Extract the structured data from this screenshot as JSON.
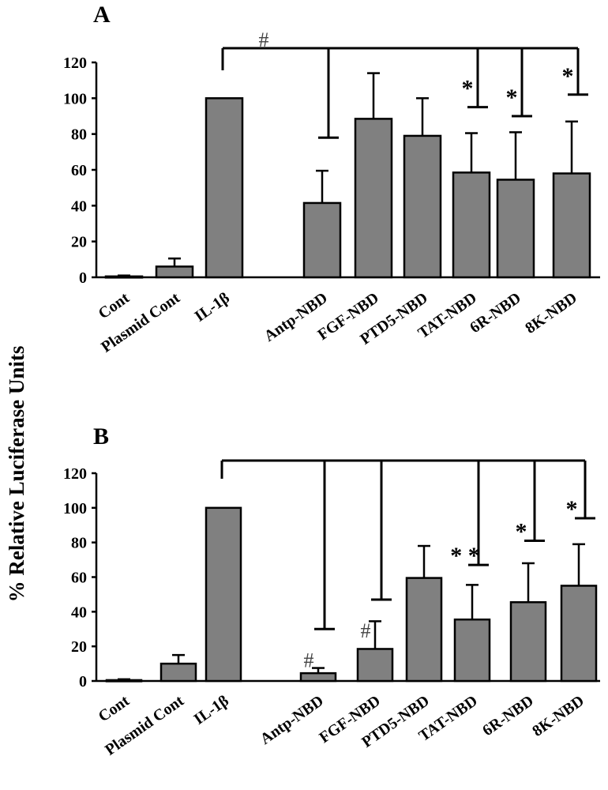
{
  "y_axis_label": "% Relative Luciferase Units",
  "chart_data": [
    {
      "type": "bar",
      "panel_label": "A",
      "ylabel": "% Relative Luciferase Units",
      "ylim": [
        0,
        120
      ],
      "yticks": [
        0,
        20,
        40,
        60,
        80,
        100,
        120
      ],
      "categories": [
        "Cont",
        "Plasmid Cont",
        "IL-1β",
        "Antp-NBD",
        "FGF-NBD",
        "PTD5-NBD",
        "TAT-NBD",
        "6R-NBD",
        "8K-NBD"
      ],
      "values": [
        0.5,
        6,
        100,
        41.5,
        88.5,
        79,
        58.5,
        54.5,
        58
      ],
      "errors": [
        0.5,
        4.5,
        0,
        18,
        25.5,
        21,
        22,
        26.5,
        29
      ],
      "significance": {
        "reference": "IL-1β",
        "global_marker": "#",
        "markers": [
          {
            "category": "Antp-NBD",
            "symbol": "",
            "level": 78
          },
          {
            "category": "TAT-NBD",
            "symbol": "*",
            "level": 95
          },
          {
            "category": "6R-NBD",
            "symbol": "*",
            "level": 90
          },
          {
            "category": "8K-NBD",
            "symbol": "*",
            "level": 102
          }
        ]
      }
    },
    {
      "type": "bar",
      "panel_label": "B",
      "ylabel": "% Relative Luciferase Units",
      "ylim": [
        0,
        120
      ],
      "yticks": [
        0,
        20,
        40,
        60,
        80,
        100,
        120
      ],
      "categories": [
        "Cont",
        "Plasmid Cont",
        "IL-1β",
        "Antp-NBD",
        "FGF-NBD",
        "PTD5-NBD",
        "TAT-NBD",
        "6R-NBD",
        "8K-NBD"
      ],
      "values": [
        0.5,
        10,
        100,
        4.5,
        18.5,
        59.5,
        35.5,
        45.5,
        55
      ],
      "errors": [
        0.5,
        5,
        0,
        3,
        16,
        18.5,
        20,
        22.5,
        24
      ],
      "significance": {
        "reference": "IL-1β",
        "global_marker": "",
        "markers": [
          {
            "category": "Antp-NBD",
            "symbol": "#",
            "level": 30
          },
          {
            "category": "FGF-NBD",
            "symbol": "#",
            "level": 47
          },
          {
            "category": "TAT-NBD",
            "symbol": "* *",
            "level": 67
          },
          {
            "category": "6R-NBD",
            "symbol": "*",
            "level": 81
          },
          {
            "category": "8K-NBD",
            "symbol": "*",
            "level": 94
          }
        ]
      }
    }
  ]
}
